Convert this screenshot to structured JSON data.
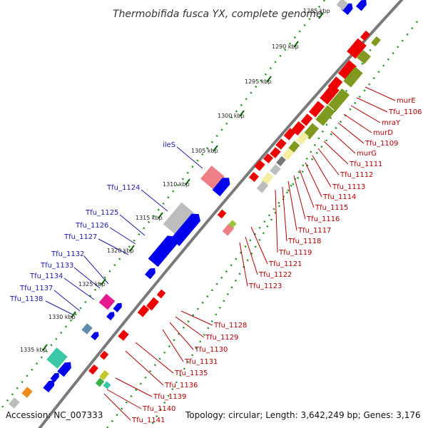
{
  "title": "Thermobifida fusca YX, complete genome",
  "footer": {
    "accession": "Accession: NC_007333",
    "summary": "Topology: circular; Length: 3,642,249 bp; Genes: 3,176"
  },
  "scale": {
    "unit": "kbp",
    "ticks": [
      "1285 kbp",
      "1290 kbp",
      "1295 kbp",
      "1300 kbp",
      "1305 kbp",
      "1310 kbp",
      "1315 kbp",
      "1320 kbp",
      "1325 kbp",
      "1330 kbp",
      "1335 kbp"
    ]
  },
  "colors": {
    "forward_cds": "#0000ee",
    "reverse_cds": "#ee0000",
    "olive": "#7f9a1e",
    "pale_yellow": "#f4eea0",
    "grey": "#bdbdbd",
    "dark_grey": "#777777",
    "pink": "#ee7f86",
    "magenta": "#e61a8e",
    "teal": "#3cc7a6",
    "steel": "#5f8fa8",
    "orange": "#f08a1c",
    "backbone": "#7a7a7a",
    "gc_dots": "#1e8f1e",
    "label_blue": "#1a1aa6",
    "label_red": "#b00000"
  },
  "labels_blue": [
    "ileS",
    "Tfu_1124",
    "Tfu_1125",
    "Tfu_1126",
    "Tfu_1127",
    "Tfu_1132",
    "Tfu_1133",
    "Tfu_1134",
    "Tfu_1137",
    "Tfu_1138"
  ],
  "labels_red": [
    "murE",
    "Tfu_1106",
    "mraY",
    "murD",
    "Tfu_1109",
    "murG",
    "Tfu_1111",
    "Tfu_1112",
    "Tfu_1113",
    "Tfu_1114",
    "Tfu_1115",
    "Tfu_1116",
    "Tfu_1117",
    "Tfu_1118",
    "Tfu_1119",
    "Tfu_1121",
    "Tfu_1122",
    "Tfu_1123",
    "Tfu_1128",
    "Tfu_1129",
    "Tfu_1130",
    "Tfu_1131",
    "Tfu_1135",
    "Tfu_1136",
    "Tfu_1139",
    "Tfu_1140",
    "Tfu_1141"
  ]
}
